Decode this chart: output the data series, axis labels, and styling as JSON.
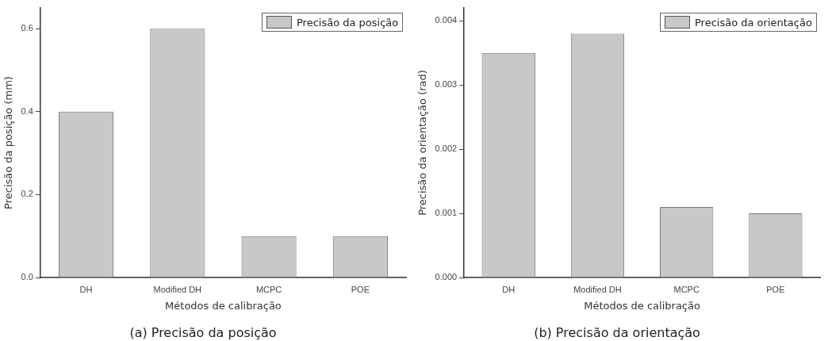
{
  "chart_data": [
    {
      "type": "bar",
      "title": "(a) Precisão da posição",
      "xlabel": "Métodos de calibração",
      "ylabel": "Precisão da posição (mm)",
      "categories": [
        "DH",
        "Modified DH",
        "MCPC",
        "POE"
      ],
      "series": [
        {
          "name": "Precisão da posição",
          "color": "#c8c8c8",
          "values": [
            0.4,
            0.6,
            0.1,
            0.1
          ]
        }
      ],
      "ylim": [
        0,
        0.65
      ],
      "yticks": [
        {
          "value": 0,
          "label": "0.0"
        },
        0.2,
        0.4,
        0.6
      ],
      "grid": false,
      "legend": "top right"
    },
    {
      "type": "bar",
      "title": "(b) Precisão da orientação",
      "xlabel": "Métodos de calibração",
      "ylabel": "Precisão da orientação (rad)",
      "categories": [
        "DH",
        "Modified DH",
        "MCPC",
        "POE"
      ],
      "series": [
        {
          "name": "Precisão da orientação",
          "color": "#c8c8c8",
          "values": [
            0.0035,
            0.0038,
            0.0011,
            0.001
          ]
        }
      ],
      "ylim": [
        0,
        0.0042
      ],
      "yticks": [
        {
          "value": 0,
          "label": "0.000"
        },
        0.001,
        0.002,
        0.003,
        0.004
      ],
      "grid": false,
      "legend": "top right"
    }
  ]
}
